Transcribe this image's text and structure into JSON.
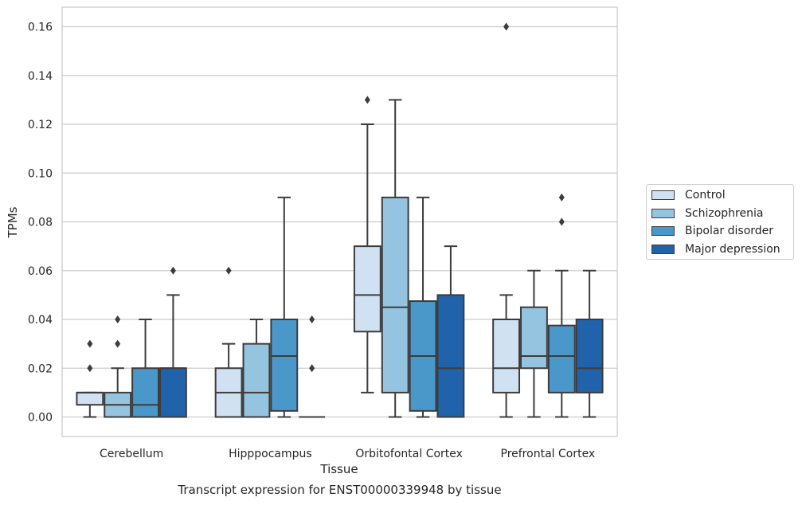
{
  "caption": "Transcript expression for ENST00000339948 by tissue",
  "colors": {
    "series": [
      "#d0e1f2",
      "#94c4df",
      "#4a98c9",
      "#2163aa"
    ],
    "grid": "#cccccc",
    "line": "#3c3c3c",
    "text": "#262626"
  },
  "chart_data": {
    "type": "box",
    "title": "",
    "xlabel": "Tissue",
    "ylabel": "TPMs",
    "ylim": [
      -0.008,
      0.168
    ],
    "yticks": [
      0.0,
      0.02,
      0.04,
      0.06,
      0.08,
      0.1,
      0.12,
      0.14,
      0.16
    ],
    "ytick_labels": [
      "0.00",
      "0.02",
      "0.04",
      "0.06",
      "0.08",
      "0.10",
      "0.12",
      "0.14",
      "0.16"
    ],
    "grid": true,
    "legend_position": "outside-right",
    "categories": [
      "Cerebellum",
      "Hipppocampus",
      "Orbitofontal Cortex",
      "Prefrontal Cortex"
    ],
    "series": [
      {
        "name": "Control",
        "boxes": [
          {
            "whislo": 0.0,
            "q1": 0.005,
            "med": 0.01,
            "q3": 0.01,
            "whishi": 0.01,
            "fliers": [
              0.02,
              0.03
            ]
          },
          {
            "whislo": 0.0,
            "q1": 0.0,
            "med": 0.01,
            "q3": 0.02,
            "whishi": 0.03,
            "fliers": [
              0.06
            ]
          },
          {
            "whislo": 0.01,
            "q1": 0.035,
            "med": 0.05,
            "q3": 0.07,
            "whishi": 0.12,
            "fliers": [
              0.13
            ]
          },
          {
            "whislo": 0.0,
            "q1": 0.01,
            "med": 0.02,
            "q3": 0.04,
            "whishi": 0.05,
            "fliers": [
              0.16
            ]
          }
        ]
      },
      {
        "name": "Schizophrenia",
        "boxes": [
          {
            "whislo": 0.0,
            "q1": 0.0,
            "med": 0.005,
            "q3": 0.01,
            "whishi": 0.02,
            "fliers": [
              0.03,
              0.04
            ]
          },
          {
            "whislo": 0.0,
            "q1": 0.0,
            "med": 0.01,
            "q3": 0.03,
            "whishi": 0.04,
            "fliers": []
          },
          {
            "whislo": 0.0,
            "q1": 0.01,
            "med": 0.045,
            "q3": 0.09,
            "whishi": 0.13,
            "fliers": []
          },
          {
            "whislo": 0.0,
            "q1": 0.02,
            "med": 0.025,
            "q3": 0.045,
            "whishi": 0.06,
            "fliers": []
          }
        ]
      },
      {
        "name": "Bipolar disorder",
        "boxes": [
          {
            "whislo": 0.0,
            "q1": 0.0,
            "med": 0.005,
            "q3": 0.02,
            "whishi": 0.04,
            "fliers": []
          },
          {
            "whislo": 0.0,
            "q1": 0.0025,
            "med": 0.025,
            "q3": 0.04,
            "whishi": 0.09,
            "fliers": []
          },
          {
            "whislo": 0.0,
            "q1": 0.0025,
            "med": 0.025,
            "q3": 0.0475,
            "whishi": 0.09,
            "fliers": []
          },
          {
            "whislo": 0.0,
            "q1": 0.01,
            "med": 0.025,
            "q3": 0.0375,
            "whishi": 0.06,
            "fliers": [
              0.08,
              0.09
            ]
          }
        ]
      },
      {
        "name": "Major depression",
        "boxes": [
          {
            "whislo": 0.0,
            "q1": 0.0,
            "med": 0.02,
            "q3": 0.02,
            "whishi": 0.05,
            "fliers": [
              0.06
            ]
          },
          {
            "whislo": 0.0,
            "q1": 0.0,
            "med": 0.0,
            "q3": 0.0,
            "whishi": 0.0,
            "fliers": [
              0.02,
              0.04
            ]
          },
          {
            "whislo": 0.0,
            "q1": 0.0,
            "med": 0.02,
            "q3": 0.05,
            "whishi": 0.07,
            "fliers": []
          },
          {
            "whislo": 0.0,
            "q1": 0.01,
            "med": 0.02,
            "q3": 0.04,
            "whishi": 0.06,
            "fliers": []
          }
        ]
      }
    ]
  }
}
